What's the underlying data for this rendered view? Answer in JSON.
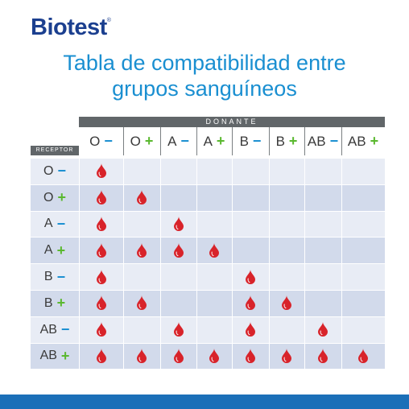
{
  "brand": {
    "name": "Biotest",
    "trademark": "®"
  },
  "title_line1": "Tabla de compatibilidad entre",
  "title_line2": "grupos sanguíneos",
  "donor_label": "DONANTE",
  "receptor_label": "RECEPTOR",
  "groups": [
    {
      "base": "O",
      "sign": "−",
      "type": "neg"
    },
    {
      "base": "O",
      "sign": "+",
      "type": "pos"
    },
    {
      "base": "A",
      "sign": "−",
      "type": "neg"
    },
    {
      "base": "A",
      "sign": "+",
      "type": "pos"
    },
    {
      "base": "B",
      "sign": "−",
      "type": "neg"
    },
    {
      "base": "B",
      "sign": "+",
      "type": "pos"
    },
    {
      "base": "AB",
      "sign": "−",
      "type": "neg"
    },
    {
      "base": "AB",
      "sign": "+",
      "type": "pos"
    }
  ],
  "compatibility": [
    [
      1,
      0,
      0,
      0,
      0,
      0,
      0,
      0
    ],
    [
      1,
      1,
      0,
      0,
      0,
      0,
      0,
      0
    ],
    [
      1,
      0,
      1,
      0,
      0,
      0,
      0,
      0
    ],
    [
      1,
      1,
      1,
      1,
      0,
      0,
      0,
      0
    ],
    [
      1,
      0,
      0,
      0,
      1,
      0,
      0,
      0
    ],
    [
      1,
      1,
      0,
      0,
      1,
      1,
      0,
      0
    ],
    [
      1,
      0,
      1,
      0,
      1,
      0,
      1,
      0
    ],
    [
      1,
      1,
      1,
      1,
      1,
      1,
      1,
      1
    ]
  ],
  "colors": {
    "brand_blue": "#1b3f8f",
    "title_blue": "#1a8fd1",
    "negative_sign": "#1a8fd1",
    "positive_sign": "#5ab82f",
    "drop_red": "#d8232a",
    "row_light": "#e8ecf5",
    "row_dark": "#d2daeb",
    "header_gray": "#616669",
    "footer_blue": "#1b6fb8"
  },
  "icons": {
    "compatible": "blood-drop-icon"
  }
}
